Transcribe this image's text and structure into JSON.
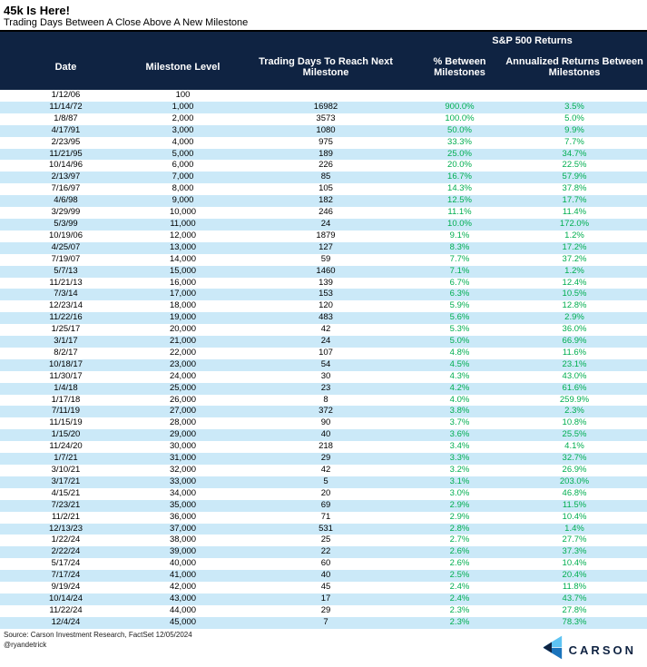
{
  "page": {
    "title": "45k Is Here!",
    "subtitle": "Trading Days Between A Close Above A New Milestone"
  },
  "chart_data": {
    "type": "table",
    "title": "45k Is Here!",
    "subtitle": "Trading Days Between A Close Above A New Milestone",
    "group_header": "S&P 500 Returns",
    "group_header_spans_columns": [
      3,
      4
    ],
    "columns": [
      "Date",
      "Milestone Level",
      "Trading Days To Reach Next Milestone",
      "% Between Milestones",
      "Annualized Returns Between Milestones"
    ],
    "rows": [
      [
        "1/12/06",
        "100",
        "",
        "",
        ""
      ],
      [
        "11/14/72",
        "1,000",
        "16982",
        "900.0%",
        "3.5%"
      ],
      [
        "1/8/87",
        "2,000",
        "3573",
        "100.0%",
        "5.0%"
      ],
      [
        "4/17/91",
        "3,000",
        "1080",
        "50.0%",
        "9.9%"
      ],
      [
        "2/23/95",
        "4,000",
        "975",
        "33.3%",
        "7.7%"
      ],
      [
        "11/21/95",
        "5,000",
        "189",
        "25.0%",
        "34.7%"
      ],
      [
        "10/14/96",
        "6,000",
        "226",
        "20.0%",
        "22.5%"
      ],
      [
        "2/13/97",
        "7,000",
        "85",
        "16.7%",
        "57.9%"
      ],
      [
        "7/16/97",
        "8,000",
        "105",
        "14.3%",
        "37.8%"
      ],
      [
        "4/6/98",
        "9,000",
        "182",
        "12.5%",
        "17.7%"
      ],
      [
        "3/29/99",
        "10,000",
        "246",
        "11.1%",
        "11.4%"
      ],
      [
        "5/3/99",
        "11,000",
        "24",
        "10.0%",
        "172.0%"
      ],
      [
        "10/19/06",
        "12,000",
        "1879",
        "9.1%",
        "1.2%"
      ],
      [
        "4/25/07",
        "13,000",
        "127",
        "8.3%",
        "17.2%"
      ],
      [
        "7/19/07",
        "14,000",
        "59",
        "7.7%",
        "37.2%"
      ],
      [
        "5/7/13",
        "15,000",
        "1460",
        "7.1%",
        "1.2%"
      ],
      [
        "11/21/13",
        "16,000",
        "139",
        "6.7%",
        "12.4%"
      ],
      [
        "7/3/14",
        "17,000",
        "153",
        "6.3%",
        "10.5%"
      ],
      [
        "12/23/14",
        "18,000",
        "120",
        "5.9%",
        "12.8%"
      ],
      [
        "11/22/16",
        "19,000",
        "483",
        "5.6%",
        "2.9%"
      ],
      [
        "1/25/17",
        "20,000",
        "42",
        "5.3%",
        "36.0%"
      ],
      [
        "3/1/17",
        "21,000",
        "24",
        "5.0%",
        "66.9%"
      ],
      [
        "8/2/17",
        "22,000",
        "107",
        "4.8%",
        "11.6%"
      ],
      [
        "10/18/17",
        "23,000",
        "54",
        "4.5%",
        "23.1%"
      ],
      [
        "11/30/17",
        "24,000",
        "30",
        "4.3%",
        "43.0%"
      ],
      [
        "1/4/18",
        "25,000",
        "23",
        "4.2%",
        "61.6%"
      ],
      [
        "1/17/18",
        "26,000",
        "8",
        "4.0%",
        "259.9%"
      ],
      [
        "7/11/19",
        "27,000",
        "372",
        "3.8%",
        "2.3%"
      ],
      [
        "11/15/19",
        "28,000",
        "90",
        "3.7%",
        "10.8%"
      ],
      [
        "1/15/20",
        "29,000",
        "40",
        "3.6%",
        "25.5%"
      ],
      [
        "11/24/20",
        "30,000",
        "218",
        "3.4%",
        "4.1%"
      ],
      [
        "1/7/21",
        "31,000",
        "29",
        "3.3%",
        "32.7%"
      ],
      [
        "3/10/21",
        "32,000",
        "42",
        "3.2%",
        "26.9%"
      ],
      [
        "3/17/21",
        "33,000",
        "5",
        "3.1%",
        "203.0%"
      ],
      [
        "4/15/21",
        "34,000",
        "20",
        "3.0%",
        "46.8%"
      ],
      [
        "7/23/21",
        "35,000",
        "69",
        "2.9%",
        "11.5%"
      ],
      [
        "11/2/21",
        "36,000",
        "71",
        "2.9%",
        "10.4%"
      ],
      [
        "12/13/23",
        "37,000",
        "531",
        "2.8%",
        "1.4%"
      ],
      [
        "1/22/24",
        "38,000",
        "25",
        "2.7%",
        "27.7%"
      ],
      [
        "2/22/24",
        "39,000",
        "22",
        "2.6%",
        "37.3%"
      ],
      [
        "5/17/24",
        "40,000",
        "60",
        "2.6%",
        "10.4%"
      ],
      [
        "7/17/24",
        "41,000",
        "40",
        "2.5%",
        "20.4%"
      ],
      [
        "9/19/24",
        "42,000",
        "45",
        "2.4%",
        "11.8%"
      ],
      [
        "10/14/24",
        "43,000",
        "17",
        "2.4%",
        "43.7%"
      ],
      [
        "11/22/24",
        "44,000",
        "29",
        "2.3%",
        "27.8%"
      ],
      [
        "12/4/24",
        "45,000",
        "7",
        "2.3%",
        "78.3%"
      ]
    ],
    "layout": {
      "stripe_even_rows": true,
      "green_value_columns": [
        3,
        4
      ]
    }
  },
  "footer": {
    "source": "Source: Carson Investment Research, FactSet 12/05/2024",
    "handle": "@ryandetrick",
    "logo_text": "CARSON"
  },
  "colors": {
    "header_navy": "#0F2342",
    "stripe_blue": "#CBE9F8",
    "value_green": "#00AE50",
    "logo_light_blue": "#5EC3F2",
    "logo_mid_blue": "#1B74BC",
    "text_black": "#000000"
  }
}
